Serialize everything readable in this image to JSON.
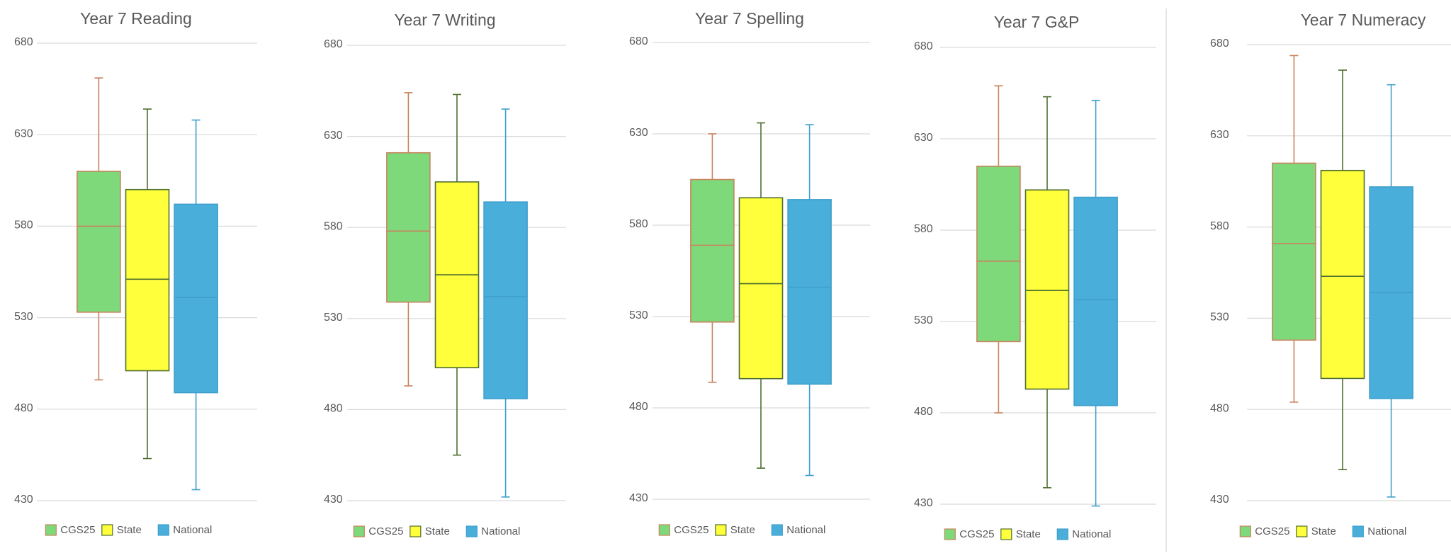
{
  "chart_data": [
    {
      "type": "box",
      "title": "Year 7 Reading",
      "ylim": [
        430,
        680
      ],
      "yticks": [
        430,
        480,
        530,
        580,
        630,
        680
      ],
      "grid": true,
      "series": [
        {
          "name": "CGS25",
          "color": "#7ed97a",
          "stroke": "#c8845e",
          "min": 496,
          "q1": 533,
          "median": 580,
          "q3": 610,
          "max": 661
        },
        {
          "name": "State",
          "color": "#ffff3c",
          "stroke": "#4f6f2f",
          "min": 453,
          "q1": 501,
          "median": 551,
          "q3": 600,
          "max": 644
        },
        {
          "name": "National",
          "color": "#4aaedb",
          "stroke": "#3f9fcc",
          "min": 436,
          "q1": 489,
          "median": 541,
          "q3": 592,
          "max": 638
        }
      ]
    },
    {
      "type": "box",
      "title": "Year 7 Writing",
      "ylim": [
        430,
        680
      ],
      "yticks": [
        430,
        480,
        530,
        580,
        630,
        680
      ],
      "grid": true,
      "series": [
        {
          "name": "CGS25",
          "color": "#7ed97a",
          "stroke": "#c8845e",
          "min": 493,
          "q1": 539,
          "median": 578,
          "q3": 621,
          "max": 654
        },
        {
          "name": "State",
          "color": "#ffff3c",
          "stroke": "#4f6f2f",
          "min": 455,
          "q1": 503,
          "median": 554,
          "q3": 605,
          "max": 653
        },
        {
          "name": "National",
          "color": "#4aaedb",
          "stroke": "#3f9fcc",
          "min": 432,
          "q1": 486,
          "median": 542,
          "q3": 594,
          "max": 645
        }
      ]
    },
    {
      "type": "box",
      "title": "Year 7 Spelling",
      "ylim": [
        430,
        680
      ],
      "yticks": [
        430,
        480,
        530,
        580,
        630,
        680
      ],
      "grid": true,
      "series": [
        {
          "name": "CGS25",
          "color": "#7ed97a",
          "stroke": "#c8845e",
          "min": 494,
          "q1": 527,
          "median": 569,
          "q3": 605,
          "max": 630
        },
        {
          "name": "State",
          "color": "#ffff3c",
          "stroke": "#4f6f2f",
          "min": 447,
          "q1": 496,
          "median": 548,
          "q3": 595,
          "max": 636
        },
        {
          "name": "National",
          "color": "#4aaedb",
          "stroke": "#3f9fcc",
          "min": 443,
          "q1": 493,
          "median": 546,
          "q3": 594,
          "max": 635
        }
      ]
    },
    {
      "type": "box",
      "title": "Year 7 G&P",
      "ylim": [
        430,
        680
      ],
      "yticks": [
        430,
        480,
        530,
        580,
        630,
        680
      ],
      "grid": true,
      "series": [
        {
          "name": "CGS25",
          "color": "#7ed97a",
          "stroke": "#c8845e",
          "min": 480,
          "q1": 519,
          "median": 563,
          "q3": 615,
          "max": 659
        },
        {
          "name": "State",
          "color": "#ffff3c",
          "stroke": "#4f6f2f",
          "min": 439,
          "q1": 493,
          "median": 547,
          "q3": 602,
          "max": 653
        },
        {
          "name": "National",
          "color": "#4aaedb",
          "stroke": "#3f9fcc",
          "min": 429,
          "q1": 484,
          "median": 542,
          "q3": 598,
          "max": 651
        }
      ]
    },
    {
      "type": "box",
      "title": "Year 7 Numeracy",
      "ylim": [
        430,
        680
      ],
      "yticks": [
        430,
        480,
        530,
        580,
        630,
        680
      ],
      "grid": true,
      "series": [
        {
          "name": "CGS25",
          "color": "#7ed97a",
          "stroke": "#c8845e",
          "min": 484,
          "q1": 518,
          "median": 571,
          "q3": 615,
          "max": 674
        },
        {
          "name": "State",
          "color": "#ffff3c",
          "stroke": "#4f6f2f",
          "min": 447,
          "q1": 497,
          "median": 553,
          "q3": 611,
          "max": 666
        },
        {
          "name": "National",
          "color": "#4aaedb",
          "stroke": "#3f9fcc",
          "min": 432,
          "q1": 486,
          "median": 544,
          "q3": 602,
          "max": 658
        }
      ]
    }
  ]
}
